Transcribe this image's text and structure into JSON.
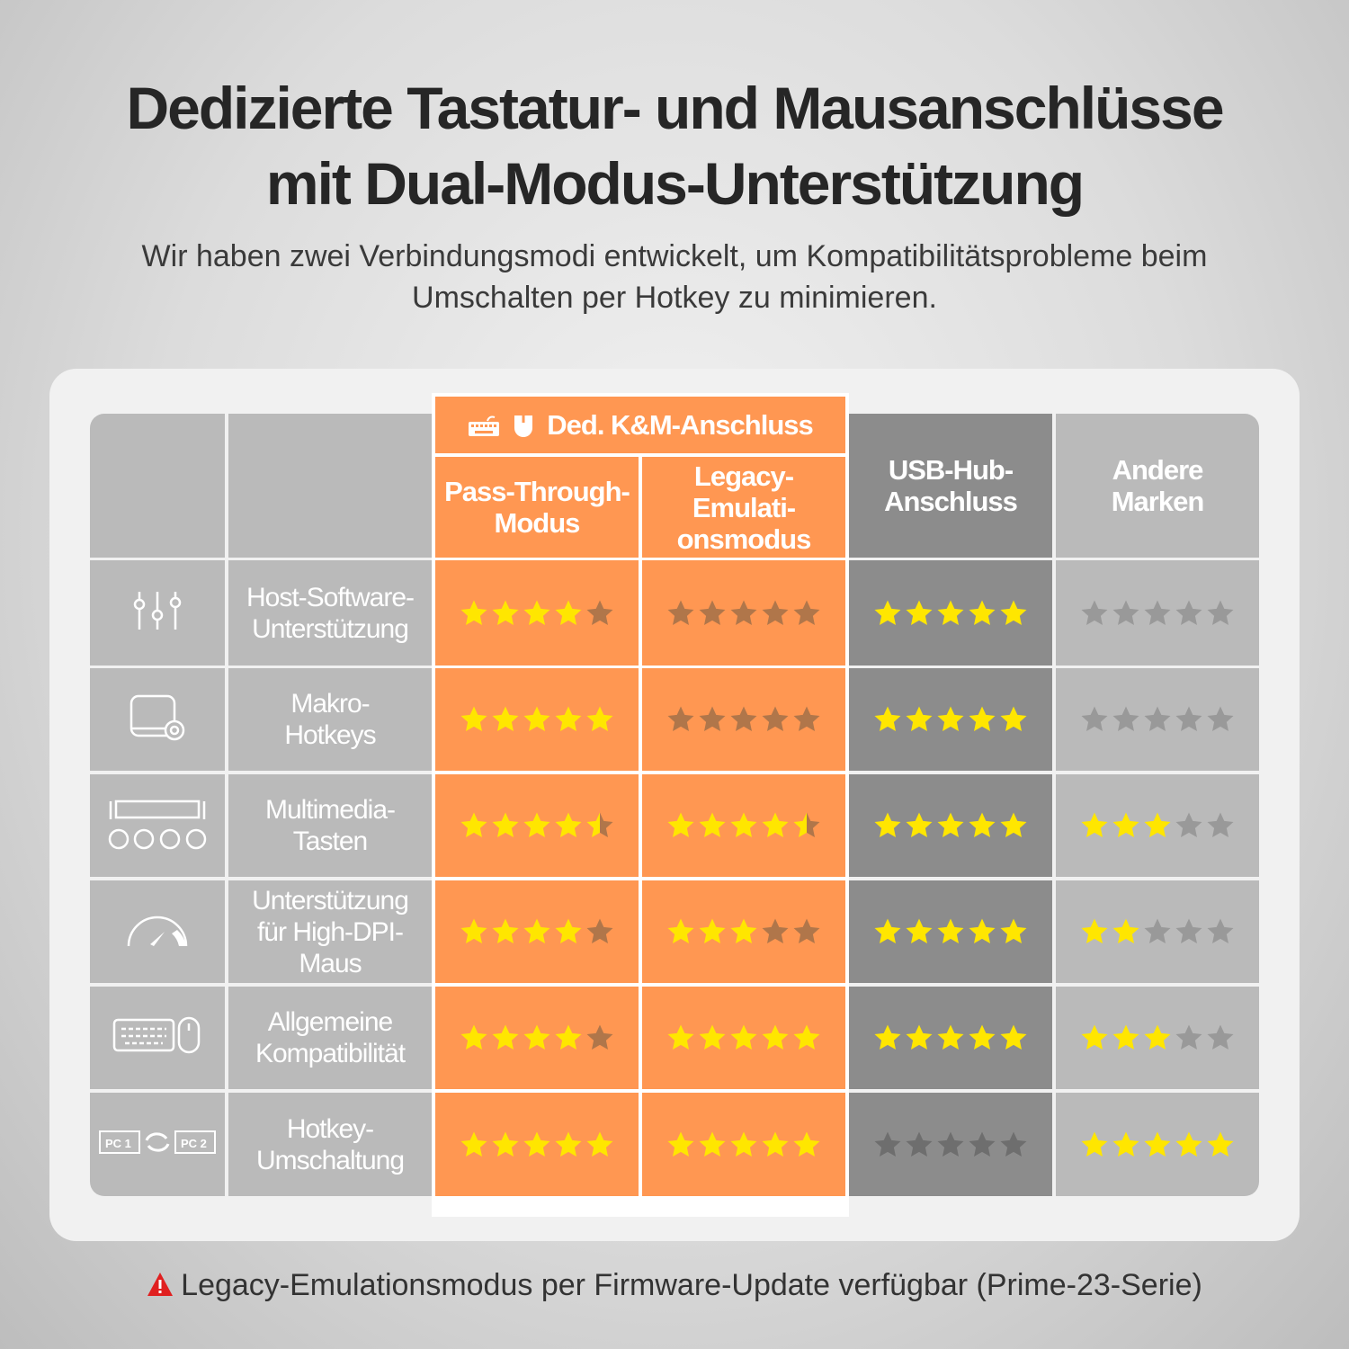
{
  "title": [
    "Dedizierte Tastatur- und Mausanschlüsse",
    "mit Dual-Modus-Unterstützung"
  ],
  "subtitle": [
    "Wir haben zwei Verbindungsmodi entwickelt, um Kompatibilitätsprobleme beim",
    "Umschalten per Hotkey zu minimieren."
  ],
  "group_header": "Ded. K&M-Anschluss",
  "columns": [
    {
      "label": [
        "Pass-Through-",
        "Modus"
      ],
      "style": "orange"
    },
    {
      "label": [
        "Legacy-",
        "Emulati-",
        "onsmodus"
      ],
      "style": "orange"
    },
    {
      "label": [
        "USB-Hub-",
        "Anschluss"
      ],
      "style": "dark"
    },
    {
      "label": [
        "Andere",
        "Marken"
      ],
      "style": "light"
    }
  ],
  "rows": [
    {
      "icon": "sliders-icon",
      "label": [
        "Host-Software-",
        "Unterstützung"
      ],
      "ratings": [
        4,
        0,
        5,
        0
      ]
    },
    {
      "icon": "keycap-gear-icon",
      "label": [
        "Makro-",
        "Hotkeys"
      ],
      "ratings": [
        5,
        0,
        5,
        0
      ]
    },
    {
      "icon": "media-keys-icon",
      "label": [
        "Multimedia-",
        "Tasten"
      ],
      "ratings": [
        4.5,
        4.5,
        5,
        3
      ]
    },
    {
      "icon": "speedometer-icon",
      "label": [
        "Unterstützung",
        "für High-DPI-",
        "Maus"
      ],
      "ratings": [
        4,
        3,
        5,
        2
      ]
    },
    {
      "icon": "keyboard-mouse-icon",
      "label": [
        "Allgemeine",
        "Kompatibilität"
      ],
      "ratings": [
        4,
        5,
        5,
        3
      ]
    },
    {
      "icon": "pc-switch-icon",
      "label": [
        "Hotkey-",
        "Umschaltung"
      ],
      "ratings": [
        5,
        5,
        0,
        5
      ]
    }
  ],
  "max_rating": 5,
  "footnote": "Legacy-Emulationsmodus per Firmware-Update verfügbar (Prime-23-Serie)",
  "colors": {
    "orange": "#ff9752",
    "dark": "#8c8c8c",
    "light": "#bababa",
    "star": "#ffe600",
    "warning": "#e02020"
  }
}
